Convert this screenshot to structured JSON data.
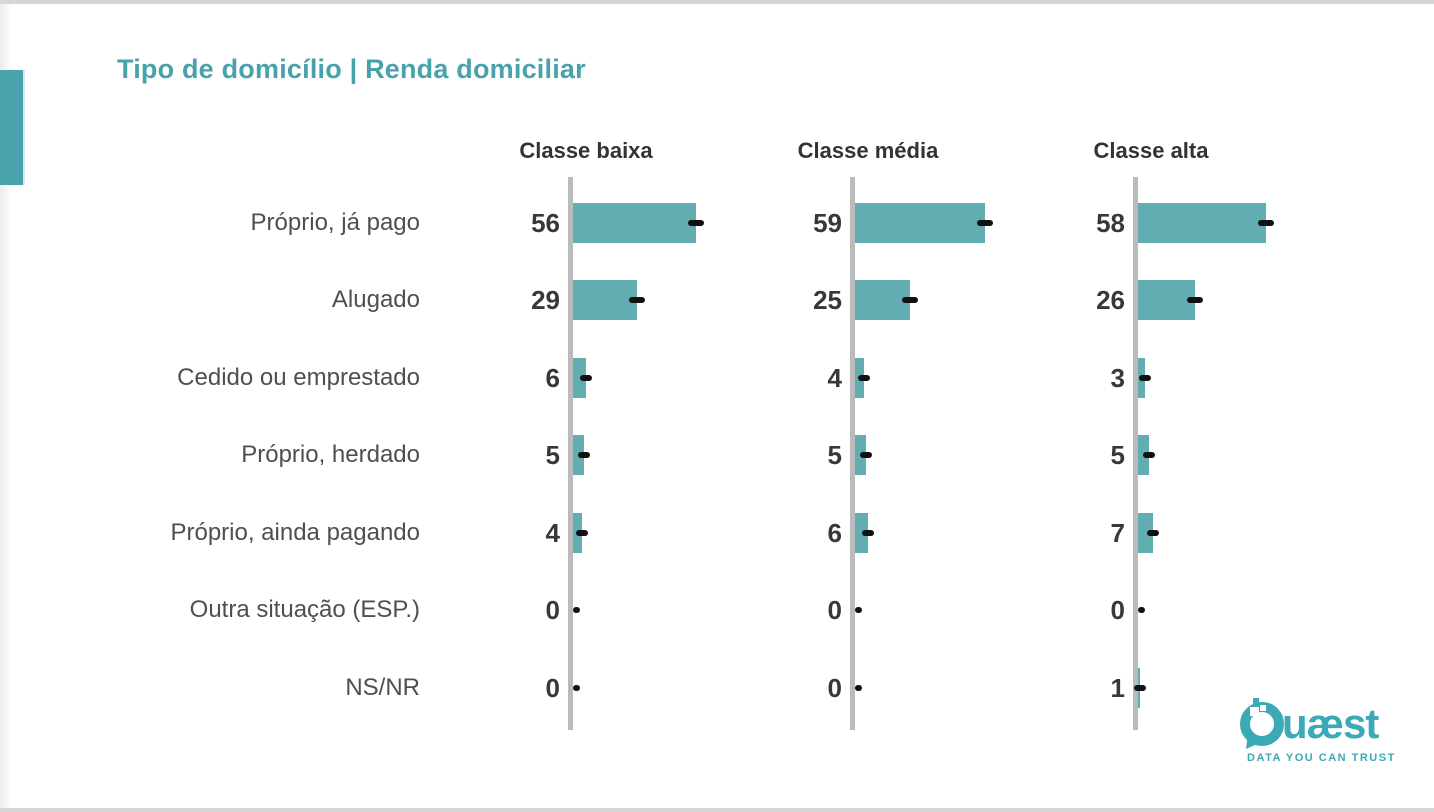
{
  "page": {
    "title": "Tipo de domicílio | Renda domiciliar",
    "accent_color": "#48a2ab"
  },
  "chart_data": {
    "type": "bar",
    "orientation": "horizontal",
    "title": "Tipo de domicílio | Renda domiciliar",
    "categories": [
      "Próprio, já pago",
      "Alugado",
      "Cedido ou emprestado",
      "Próprio, herdado",
      "Próprio, ainda pagando",
      "Outra situação (ESP.)",
      "NS/NR"
    ],
    "series": [
      {
        "name": "Classe baixa",
        "values": [
          56,
          29,
          6,
          5,
          4,
          0,
          0
        ]
      },
      {
        "name": "Classe média",
        "values": [
          59,
          25,
          4,
          5,
          6,
          0,
          0
        ]
      },
      {
        "name": "Classe alta",
        "values": [
          58,
          26,
          3,
          5,
          7,
          0,
          1
        ]
      }
    ],
    "xlim": [
      0,
      100
    ],
    "value_labels": true,
    "bar_color": "#62adb1",
    "axis_color": "#bbbbbb",
    "marker_color": "#111111",
    "legend_position": "column-headers",
    "grid": false
  },
  "logo": {
    "brand": "Quæst",
    "tagline": "DATA YOU CAN TRUST",
    "color": "#3ba9b6"
  }
}
